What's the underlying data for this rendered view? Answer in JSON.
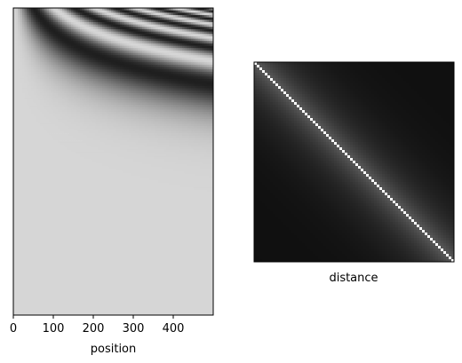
{
  "chart_data": [
    {
      "type": "heatmap",
      "title": "",
      "xlabel": "position",
      "ylabel": "",
      "xlim": [
        0,
        500
      ],
      "x_ticks": [
        0,
        100,
        200,
        300,
        400
      ],
      "y_ticks": [],
      "colormap": "gray",
      "description_of_values": "sinusoidal positional encoding: rows = encoding dimension (frequency decreasing downward), columns = position 0-500"
    },
    {
      "type": "heatmap",
      "title": "",
      "xlabel": "distance",
      "ylabel": "",
      "x_ticks": [],
      "y_ticks": [],
      "colormap": "gray",
      "description_of_values": "position-to-position similarity matrix; bright diagonal, dark elsewhere"
    }
  ]
}
